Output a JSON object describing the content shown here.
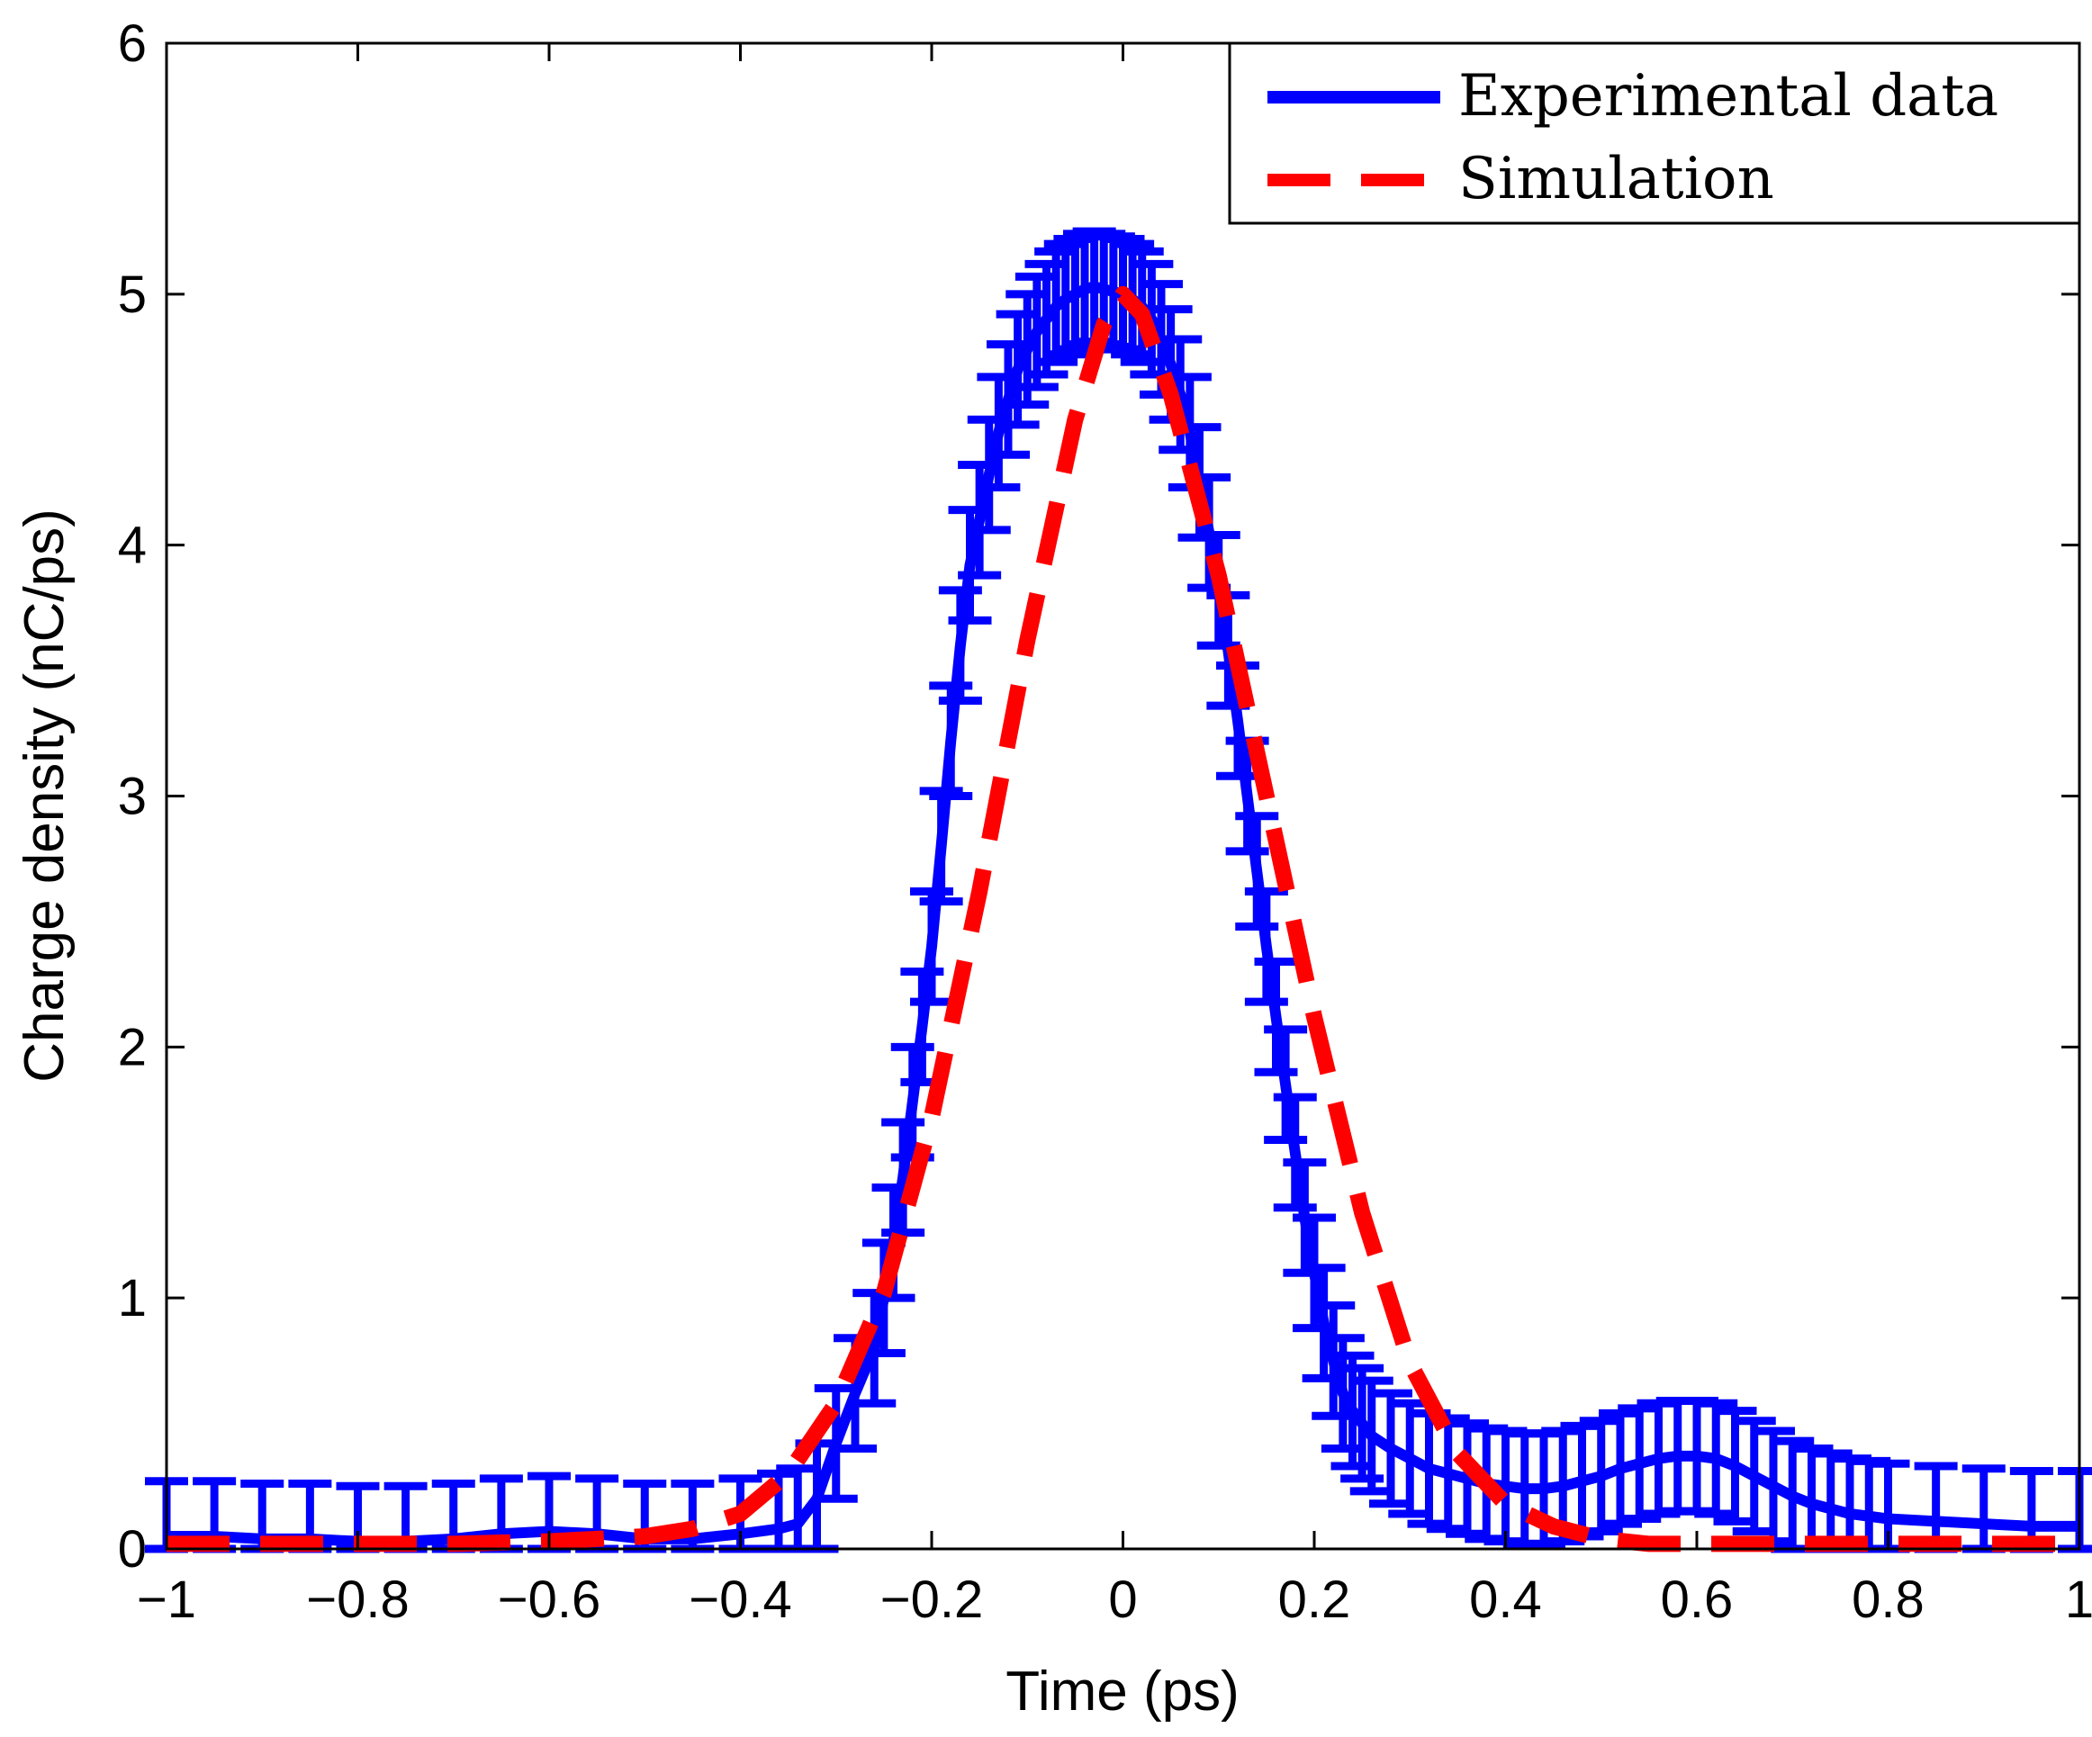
{
  "chart_data": {
    "type": "line",
    "title": "",
    "xlabel": "Time (ps)",
    "ylabel": "Charge density (nC/ps)",
    "xlim": [
      -1,
      1
    ],
    "ylim": [
      0,
      6
    ],
    "xticks": [
      -1,
      -0.8,
      -0.6,
      -0.4,
      -0.2,
      0,
      0.2,
      0.4,
      0.6,
      0.8,
      1
    ],
    "xtick_labels": [
      "−1",
      "−0.8",
      "−0.6",
      "−0.4",
      "−0.2",
      "0",
      "0.2",
      "0.4",
      "0.6",
      "0.8",
      "1"
    ],
    "yticks": [
      0,
      1,
      2,
      3,
      4,
      5,
      6
    ],
    "ytick_labels": [
      "0",
      "1",
      "2",
      "3",
      "4",
      "5",
      "6"
    ],
    "grid": false,
    "legend_position": "top-right",
    "series": [
      {
        "name": "Experimental data",
        "style": "solid",
        "color": "#0000ff",
        "errorbars": true,
        "x": [
          -1.0,
          -0.95,
          -0.9,
          -0.85,
          -0.8,
          -0.75,
          -0.7,
          -0.65,
          -0.6,
          -0.55,
          -0.5,
          -0.45,
          -0.4,
          -0.36,
          -0.34,
          -0.32,
          -0.3,
          -0.28,
          -0.26,
          -0.25,
          -0.24,
          -0.23,
          -0.22,
          -0.21,
          -0.2,
          -0.19,
          -0.18,
          -0.17,
          -0.16,
          -0.15,
          -0.14,
          -0.13,
          -0.12,
          -0.11,
          -0.1,
          -0.09,
          -0.08,
          -0.07,
          -0.06,
          -0.05,
          -0.04,
          -0.03,
          -0.02,
          -0.01,
          0.0,
          0.01,
          0.02,
          0.03,
          0.04,
          0.05,
          0.06,
          0.07,
          0.08,
          0.09,
          0.1,
          0.11,
          0.12,
          0.13,
          0.14,
          0.15,
          0.16,
          0.17,
          0.18,
          0.19,
          0.2,
          0.21,
          0.22,
          0.23,
          0.24,
          0.25,
          0.26,
          0.28,
          0.3,
          0.32,
          0.34,
          0.36,
          0.38,
          0.4,
          0.42,
          0.44,
          0.46,
          0.48,
          0.5,
          0.52,
          0.54,
          0.56,
          0.58,
          0.6,
          0.62,
          0.64,
          0.66,
          0.68,
          0.7,
          0.72,
          0.74,
          0.76,
          0.78,
          0.8,
          0.85,
          0.9,
          0.95,
          1.0
        ],
        "y": [
          0.05,
          0.05,
          0.04,
          0.04,
          0.03,
          0.03,
          0.04,
          0.06,
          0.07,
          0.06,
          0.04,
          0.04,
          0.06,
          0.08,
          0.1,
          0.2,
          0.42,
          0.62,
          0.8,
          1.0,
          1.22,
          1.48,
          1.78,
          2.08,
          2.4,
          2.8,
          3.22,
          3.6,
          3.92,
          4.1,
          4.28,
          4.45,
          4.58,
          4.7,
          4.78,
          4.85,
          4.9,
          4.95,
          4.98,
          5.0,
          5.02,
          5.03,
          5.02,
          5.01,
          5.0,
          4.98,
          4.95,
          4.9,
          4.82,
          4.72,
          4.6,
          4.45,
          4.25,
          4.05,
          3.82,
          3.58,
          3.3,
          3.0,
          2.7,
          2.4,
          2.12,
          1.85,
          1.58,
          1.32,
          1.1,
          0.9,
          0.75,
          0.62,
          0.55,
          0.5,
          0.45,
          0.4,
          0.36,
          0.32,
          0.3,
          0.28,
          0.26,
          0.25,
          0.24,
          0.24,
          0.25,
          0.27,
          0.29,
          0.32,
          0.34,
          0.36,
          0.37,
          0.37,
          0.36,
          0.33,
          0.29,
          0.25,
          0.21,
          0.18,
          0.16,
          0.14,
          0.13,
          0.12,
          0.11,
          0.1,
          0.09,
          0.09
        ],
        "yerr": 0.22
      },
      {
        "name": "Simulation",
        "style": "dashed",
        "color": "#ff0000",
        "x": [
          -1.0,
          -0.9,
          -0.8,
          -0.7,
          -0.6,
          -0.5,
          -0.45,
          -0.4,
          -0.35,
          -0.3,
          -0.25,
          -0.2,
          -0.15,
          -0.1,
          -0.05,
          -0.02,
          0.0,
          0.02,
          0.05,
          0.1,
          0.15,
          0.2,
          0.25,
          0.3,
          0.35,
          0.4,
          0.45,
          0.5,
          0.55,
          0.6,
          0.7,
          0.8,
          0.9,
          1.0
        ],
        "y": [
          0.02,
          0.02,
          0.02,
          0.02,
          0.03,
          0.05,
          0.08,
          0.14,
          0.3,
          0.58,
          1.02,
          1.72,
          2.62,
          3.62,
          4.5,
          4.88,
          5.0,
          4.92,
          4.6,
          3.88,
          3.0,
          2.12,
          1.34,
          0.74,
          0.38,
          0.18,
          0.09,
          0.04,
          0.02,
          0.02,
          0.02,
          0.02,
          0.02,
          0.02
        ]
      }
    ]
  }
}
